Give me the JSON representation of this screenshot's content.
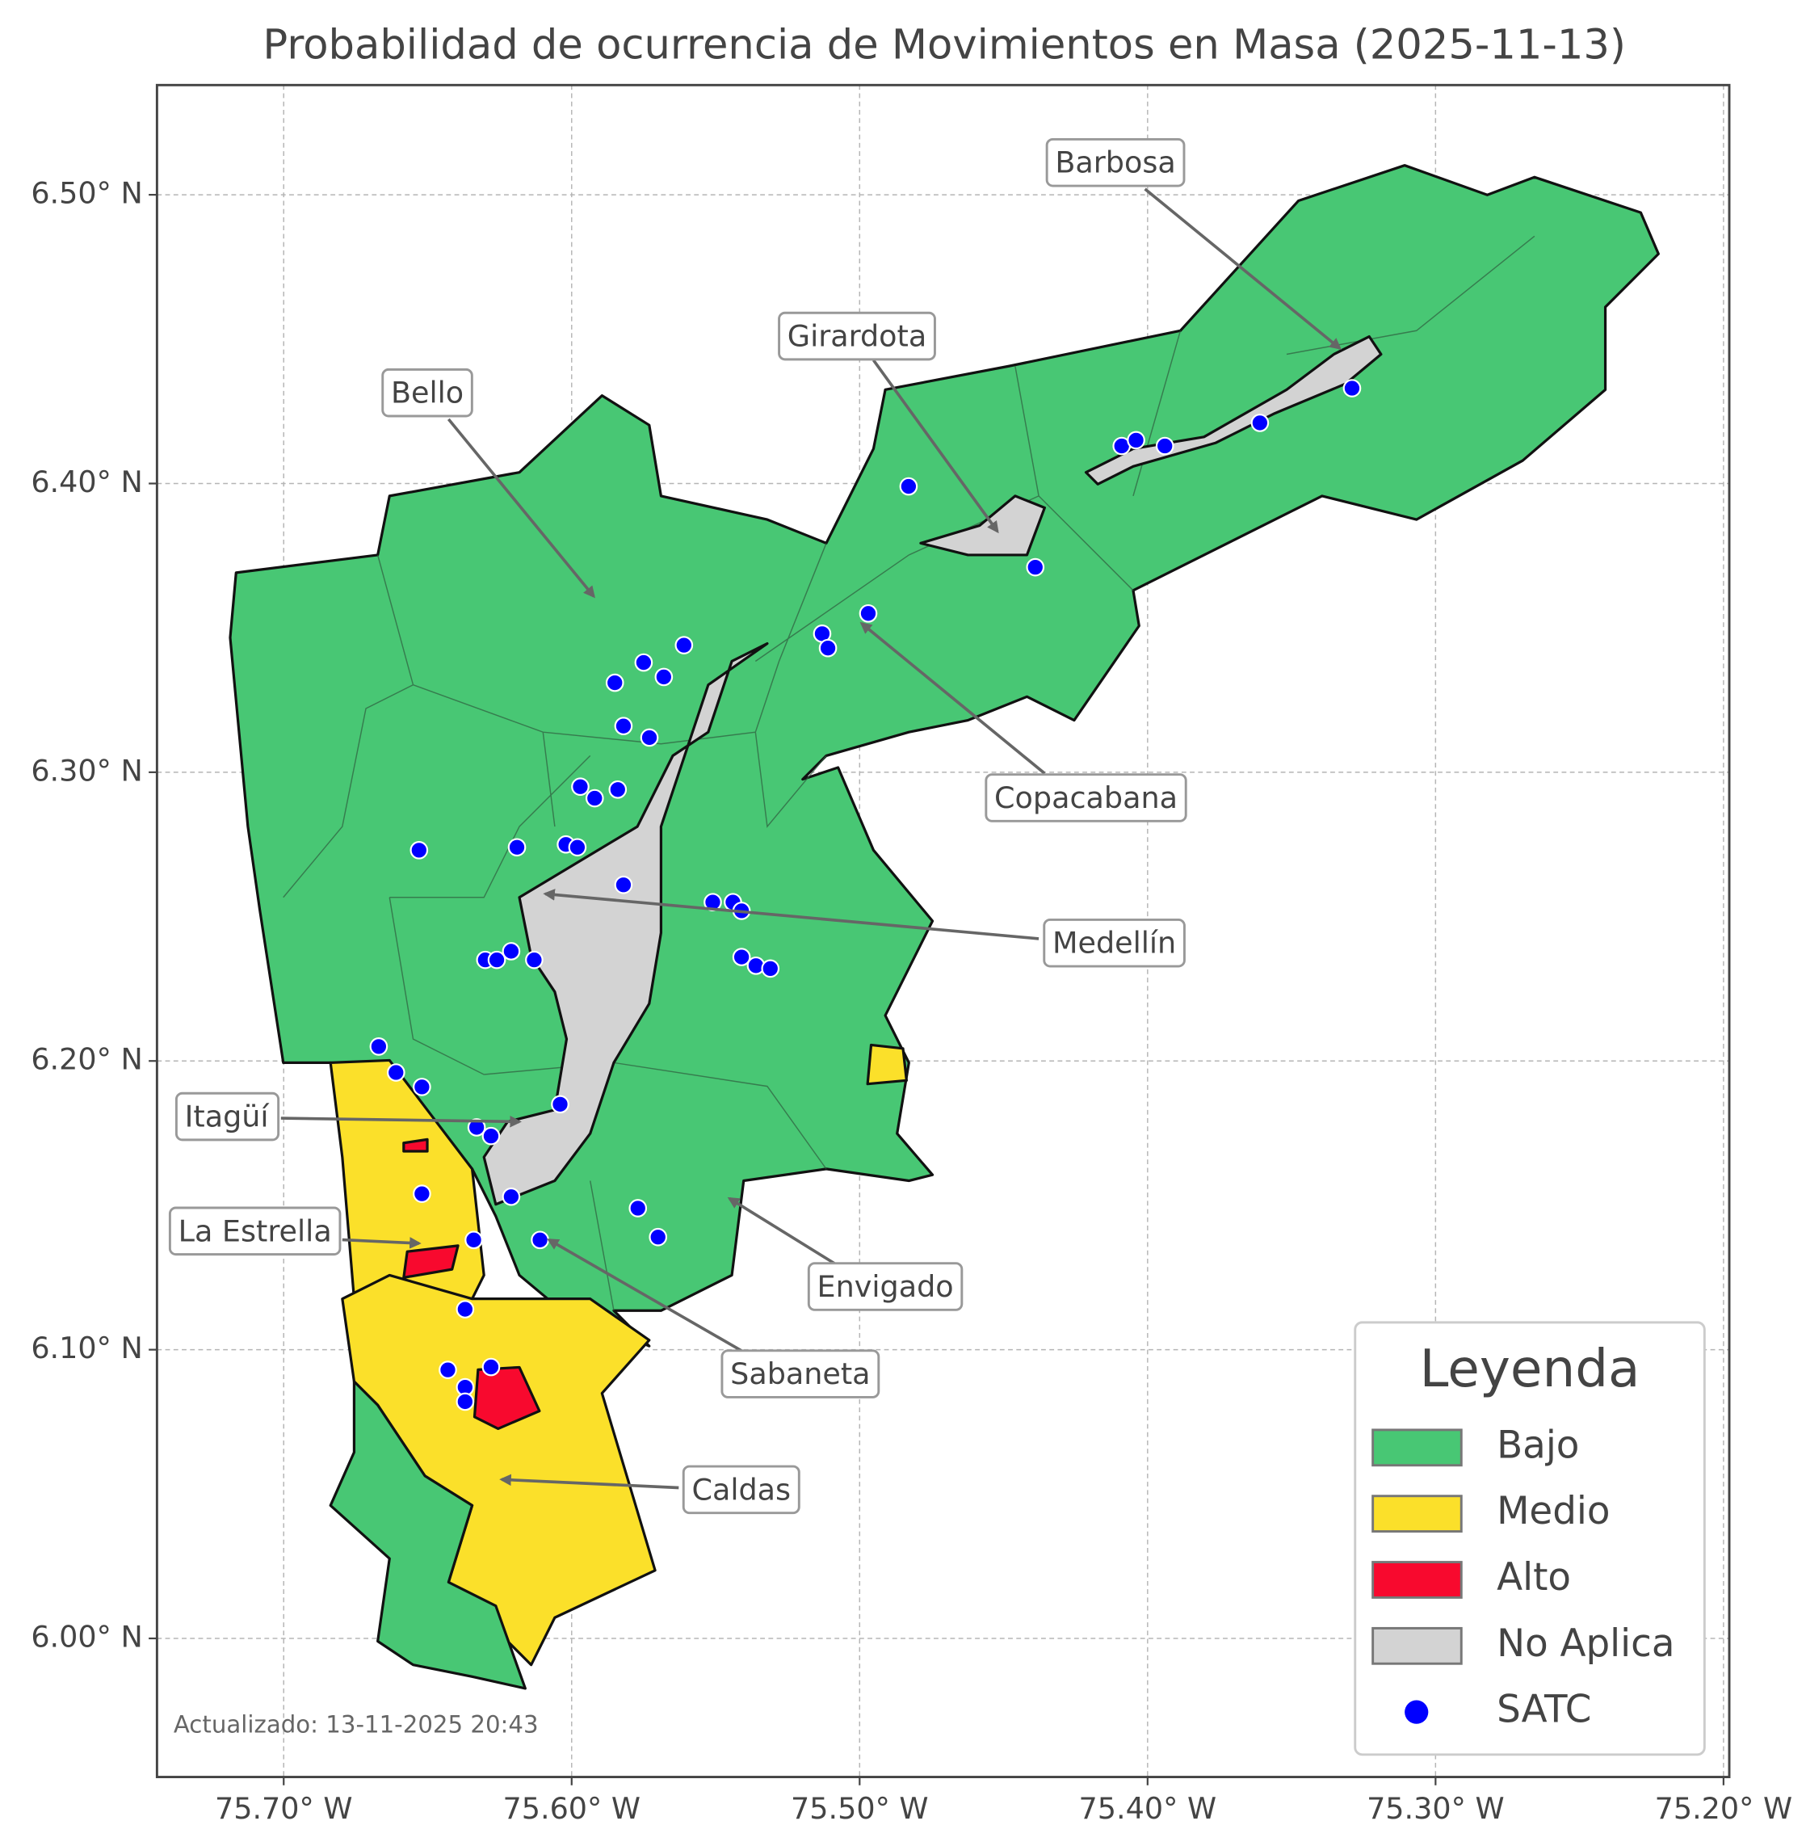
{
  "chart_data": {
    "type": "map",
    "title": "Probabilidad de ocurrencia de Movimientos en Masa (2025-11-13)",
    "xlim": [
      -75.744,
      -75.198
    ],
    "ylim": [
      5.952,
      6.538
    ],
    "xticks": [
      {
        "value": -75.7,
        "label": "75.70° W"
      },
      {
        "value": -75.6,
        "label": "75.60° W"
      },
      {
        "value": -75.5,
        "label": "75.50° W"
      },
      {
        "value": -75.4,
        "label": "75.40° W"
      },
      {
        "value": -75.3,
        "label": "75.30° W"
      },
      {
        "value": -75.2,
        "label": "75.20° W"
      }
    ],
    "yticks": [
      {
        "value": 6.0,
        "label": "6.00° N"
      },
      {
        "value": 6.1,
        "label": "6.10° N"
      },
      {
        "value": 6.2,
        "label": "6.20° N"
      },
      {
        "value": 6.3,
        "label": "6.30° N"
      },
      {
        "value": 6.4,
        "label": "6.40° N"
      },
      {
        "value": 6.5,
        "label": "6.50° N"
      }
    ],
    "grid": true,
    "legend_title": "Leyenda",
    "legend_position": "lower right",
    "classes": [
      {
        "label": "Bajo",
        "color": "#48c774"
      },
      {
        "label": "Medio",
        "color": "#fbe02a"
      },
      {
        "label": "Alto",
        "color": "#f8092e"
      },
      {
        "label": "No Aplica",
        "color": "#d3d3d3"
      }
    ],
    "series": [
      {
        "name": "SATC",
        "color": "#0000ff",
        "x": [
          -75.329,
          -75.361,
          -75.409,
          -75.404,
          -75.394,
          -75.483,
          -75.439,
          -75.497,
          -75.513,
          -75.511,
          -75.561,
          -75.575,
          -75.585,
          -75.568,
          -75.582,
          -75.573,
          -75.597,
          -75.592,
          -75.584,
          -75.653,
          -75.619,
          -75.602,
          -75.598,
          -75.582,
          -75.551,
          -75.544,
          -75.541,
          -75.541,
          -75.536,
          -75.531,
          -75.621,
          -75.63,
          -75.626,
          -75.613,
          -75.667,
          -75.661,
          -75.652,
          -75.604,
          -75.633,
          -75.628,
          -75.621,
          -75.652,
          -75.577,
          -75.57,
          -75.634,
          -75.611,
          -75.637,
          -75.643,
          -75.628,
          -75.637,
          -75.637
        ],
        "y": [
          6.433,
          6.421,
          6.413,
          6.415,
          6.413,
          6.399,
          6.371,
          6.355,
          6.348,
          6.343,
          6.344,
          6.338,
          6.331,
          6.333,
          6.316,
          6.312,
          6.295,
          6.291,
          6.294,
          6.273,
          6.274,
          6.275,
          6.274,
          6.261,
          6.255,
          6.255,
          6.252,
          6.236,
          6.233,
          6.232,
          6.238,
          6.235,
          6.235,
          6.235,
          6.205,
          6.196,
          6.191,
          6.185,
          6.177,
          6.174,
          6.153,
          6.154,
          6.149,
          6.139,
          6.138,
          6.138,
          6.114,
          6.093,
          6.094,
          6.087,
          6.082
        ]
      }
    ],
    "annotations": [
      "Barbosa",
      "Girardota",
      "Bello",
      "Copacabana",
      "Medellín",
      "Itagüí",
      "La Estrella",
      "Envigado",
      "Sabaneta",
      "Caldas"
    ],
    "footnote": "Actualizado: 13-11-2025 20:43"
  }
}
